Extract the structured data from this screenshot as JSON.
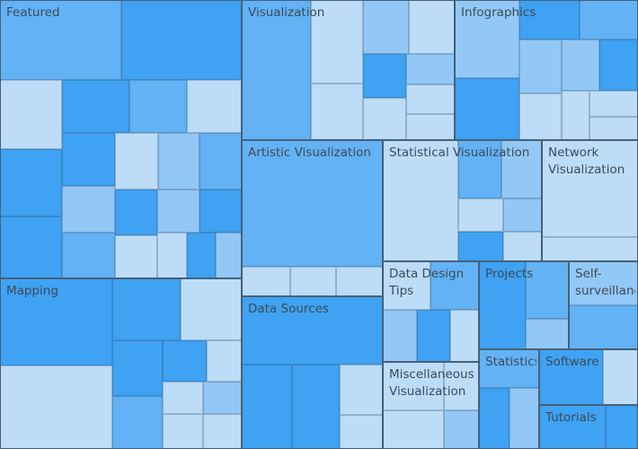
{
  "chart_data": {
    "type": "treemap",
    "colors": {
      "shade_0": "#bcdcf8",
      "shade_1": "#93c8f6",
      "shade_2": "#63b2f5",
      "shade_3": "#3fa2f2",
      "border": "#46607a",
      "label": "#3d4a57"
    },
    "groups": [
      {
        "label": "Featured",
        "cells": [
          [
            0,
            0,
            135,
            89,
            2
          ],
          [
            135,
            0,
            134,
            89,
            3
          ],
          [
            0,
            89,
            69,
            77,
            0
          ],
          [
            69,
            89,
            75,
            59,
            3
          ],
          [
            144,
            89,
            64,
            59,
            2
          ],
          [
            208,
            89,
            61,
            59,
            0
          ],
          [
            0,
            166,
            69,
            75,
            3
          ],
          [
            0,
            241,
            69,
            69,
            3
          ],
          [
            69,
            148,
            59,
            59,
            3
          ],
          [
            128,
            148,
            48,
            63,
            0
          ],
          [
            176,
            148,
            46,
            63,
            1
          ],
          [
            222,
            148,
            47,
            63,
            2
          ],
          [
            69,
            207,
            59,
            52,
            1
          ],
          [
            69,
            259,
            59,
            51,
            2
          ],
          [
            128,
            211,
            47,
            51,
            3
          ],
          [
            175,
            211,
            47,
            48,
            1
          ],
          [
            222,
            211,
            47,
            48,
            3
          ],
          [
            128,
            262,
            47,
            48,
            0
          ],
          [
            175,
            259,
            33,
            51,
            0
          ],
          [
            208,
            259,
            32,
            51,
            3
          ],
          [
            240,
            259,
            29,
            51,
            1
          ]
        ]
      },
      {
        "label": "Visualization",
        "cells": [
          [
            269,
            0,
            77,
            156,
            2
          ],
          [
            346,
            0,
            58,
            93,
            0
          ],
          [
            346,
            93,
            58,
            63,
            0
          ],
          [
            404,
            0,
            51,
            60,
            1
          ],
          [
            455,
            0,
            51,
            60,
            0
          ],
          [
            404,
            60,
            48,
            49,
            3
          ],
          [
            452,
            60,
            54,
            34,
            1
          ],
          [
            452,
            94,
            54,
            33,
            0
          ],
          [
            404,
            109,
            48,
            47,
            0
          ],
          [
            452,
            127,
            54,
            29,
            0
          ]
        ]
      },
      {
        "label": "Infographics",
        "cells": [
          [
            506,
            0,
            72,
            87,
            1
          ],
          [
            578,
            0,
            67,
            44,
            3
          ],
          [
            645,
            0,
            65,
            44,
            2
          ],
          [
            506,
            87,
            72,
            69,
            3
          ],
          [
            578,
            44,
            47,
            60,
            1
          ],
          [
            625,
            44,
            42,
            57,
            1
          ],
          [
            667,
            44,
            43,
            57,
            3
          ],
          [
            578,
            104,
            47,
            52,
            0
          ],
          [
            625,
            101,
            31,
            55,
            0
          ],
          [
            656,
            101,
            54,
            29,
            0
          ],
          [
            656,
            130,
            54,
            26,
            0
          ]
        ]
      },
      {
        "label": "Artistic Visualization",
        "cells": [
          [
            269,
            156,
            157,
            141,
            2
          ],
          [
            269,
            297,
            54,
            33,
            0
          ],
          [
            323,
            297,
            51,
            33,
            0
          ],
          [
            374,
            297,
            52,
            33,
            0
          ]
        ]
      },
      {
        "label": "Statistical Visualization",
        "cells": [
          [
            426,
            156,
            84,
            135,
            0
          ],
          [
            510,
            156,
            48,
            65,
            2
          ],
          [
            558,
            156,
            45,
            65,
            1
          ],
          [
            510,
            221,
            50,
            37,
            0
          ],
          [
            560,
            221,
            43,
            37,
            1
          ],
          [
            510,
            258,
            50,
            33,
            3
          ],
          [
            560,
            258,
            43,
            33,
            0
          ]
        ]
      },
      {
        "label": "Network\nVisualization",
        "cells": [
          [
            603,
            156,
            107,
            108,
            0
          ],
          [
            603,
            264,
            107,
            27,
            0
          ]
        ]
      },
      {
        "label": "Mapping",
        "cells": [
          [
            0,
            310,
            125,
            97,
            3
          ],
          [
            0,
            407,
            125,
            93,
            0
          ],
          [
            125,
            310,
            76,
            69,
            3
          ],
          [
            201,
            310,
            68,
            69,
            0
          ],
          [
            125,
            379,
            56,
            62,
            3
          ],
          [
            181,
            379,
            49,
            46,
            3
          ],
          [
            230,
            379,
            39,
            46,
            0
          ],
          [
            125,
            441,
            56,
            59,
            2
          ],
          [
            181,
            425,
            45,
            36,
            0
          ],
          [
            226,
            425,
            43,
            36,
            1
          ],
          [
            181,
            461,
            45,
            39,
            0
          ],
          [
            226,
            461,
            43,
            39,
            0
          ]
        ]
      },
      {
        "label": "Data Sources",
        "cells": [
          [
            269,
            330,
            157,
            76,
            3
          ],
          [
            269,
            406,
            56,
            94,
            3
          ],
          [
            325,
            406,
            53,
            94,
            3
          ],
          [
            378,
            406,
            48,
            56,
            0
          ],
          [
            378,
            462,
            48,
            38,
            0
          ]
        ]
      },
      {
        "label": "Data Design\nTips",
        "cells": [
          [
            426,
            291,
            53,
            54,
            0
          ],
          [
            479,
            291,
            54,
            54,
            2
          ],
          [
            426,
            345,
            38,
            58,
            1
          ],
          [
            464,
            345,
            37,
            58,
            3
          ],
          [
            501,
            345,
            32,
            58,
            0
          ]
        ]
      },
      {
        "label": "Miscellaneous\nVisualization",
        "cells": [
          [
            426,
            403,
            68,
            54,
            0
          ],
          [
            494,
            403,
            39,
            54,
            0
          ],
          [
            426,
            457,
            68,
            43,
            0
          ],
          [
            494,
            457,
            39,
            43,
            1
          ]
        ]
      },
      {
        "label": "Projects",
        "cells": [
          [
            533,
            291,
            52,
            98,
            3
          ],
          [
            585,
            291,
            48,
            64,
            2
          ],
          [
            585,
            355,
            48,
            34,
            1
          ]
        ]
      },
      {
        "label": "Self-\nsurveillance",
        "cells": [
          [
            633,
            291,
            77,
            49,
            1
          ],
          [
            633,
            340,
            77,
            49,
            2
          ]
        ]
      },
      {
        "label": "Statistics",
        "cells": [
          [
            533,
            389,
            67,
            43,
            2
          ],
          [
            533,
            432,
            34,
            68,
            3
          ],
          [
            567,
            432,
            33,
            68,
            1
          ]
        ]
      },
      {
        "label": "Software",
        "cells": [
          [
            600,
            389,
            71,
            62,
            3
          ],
          [
            671,
            389,
            39,
            62,
            0
          ]
        ]
      },
      {
        "label": "Tutorials",
        "cells": [
          [
            600,
            451,
            74,
            49,
            3
          ],
          [
            674,
            451,
            36,
            49,
            3
          ]
        ]
      }
    ]
  }
}
